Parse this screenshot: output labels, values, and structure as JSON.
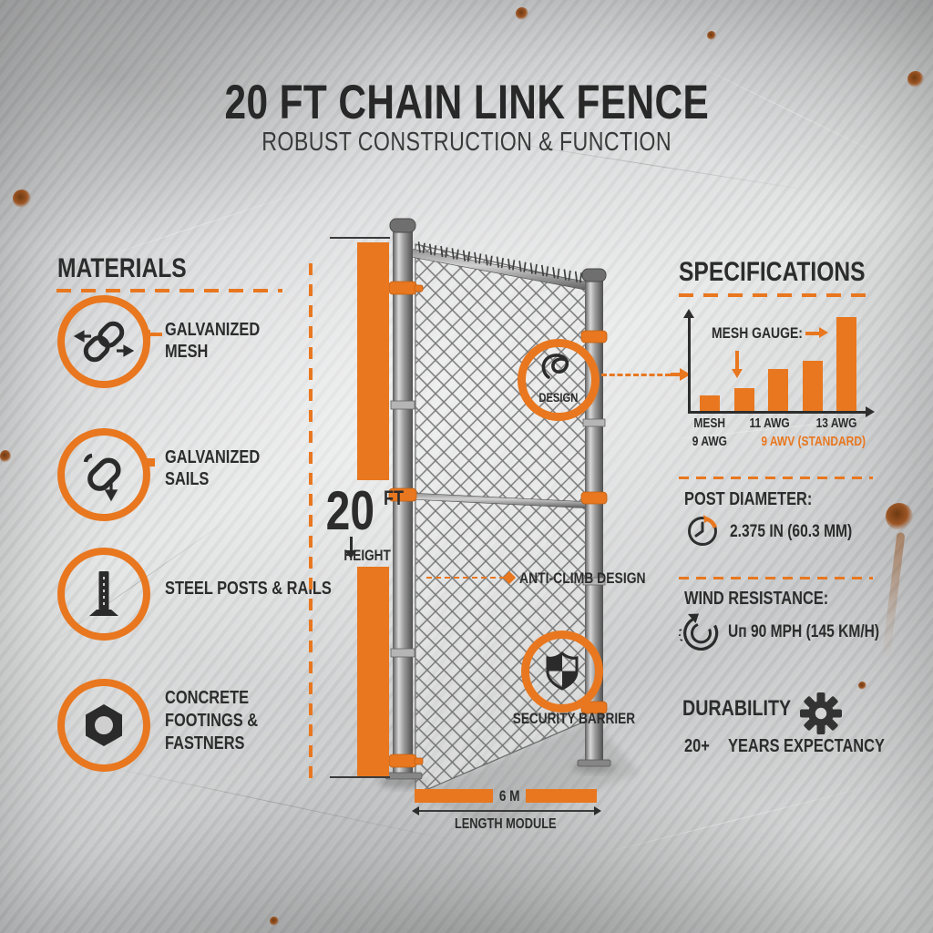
{
  "header": {
    "title": "20 FT CHAIN LINK FENCE",
    "subtitle": "ROBUST CONSTRUCTION & FUNCTION"
  },
  "materials": {
    "heading": "MATERIALS",
    "items": [
      {
        "icon": "chain-mesh-icon",
        "lines": [
          "GALVANIZED",
          "MESH"
        ]
      },
      {
        "icon": "chain-link-icon",
        "lines": [
          "GALVANIZED",
          "SAILS"
        ]
      },
      {
        "icon": "steel-post-icon",
        "lines": [
          "STEEL POSTS & RAILS"
        ]
      },
      {
        "icon": "hex-nut-icon",
        "lines": [
          "CONCRETE",
          "FOOTINGS &",
          "FASTNERS"
        ]
      }
    ]
  },
  "diagram": {
    "height_value": "20",
    "height_unit": "FT",
    "height_label": "HEIGHT",
    "length_value": "6 M",
    "length_label": "LENGTH MODULE",
    "design_label": "DESIGN",
    "security_label": "SECURITY BARRIER",
    "anti_climb_label": "ANTI-CLIMB DESIGN"
  },
  "specifications": {
    "heading": "SPECIFICATIONS",
    "post_diameter": {
      "label": "POST DIAMETER:",
      "value": "2.375 IN (60.3 MM)",
      "icon": "gauge-icon"
    },
    "wind": {
      "label": "WIND RESISTANCE:",
      "value": "Uп 90 MPH (145 KM/H)",
      "icon": "rotate-arrow-icon"
    },
    "durability": {
      "label": "DURABILITY",
      "years": "20+",
      "text": "YEARS EXPECTANCY",
      "icon": "gear-icon"
    }
  },
  "chart_data": {
    "type": "bar",
    "title": "MESH GAUGE:",
    "values": [
      17,
      25,
      46,
      55,
      103
    ],
    "values_note": "relative bar heights in px; bars increase left to right (gauge scale)",
    "categories": [
      "MESH 9 AWG",
      "",
      "11 AWG",
      "",
      "13 AWG"
    ],
    "tick_row1": [
      "MESH",
      "11 AWG",
      "13 AWG"
    ],
    "tick_row2_dark": "9 AWG",
    "tick_row2_orange": "9 AWV (STANDARD)",
    "bar_color": "#e8771f",
    "axis_color": "#2e2e2e",
    "grid": false,
    "legend_position": "none"
  },
  "colors": {
    "accent": "#e8771f",
    "text_dark": "#2c2c2c",
    "metal_light": "#dcdcdc",
    "metal_dark": "#c3c4c5"
  }
}
